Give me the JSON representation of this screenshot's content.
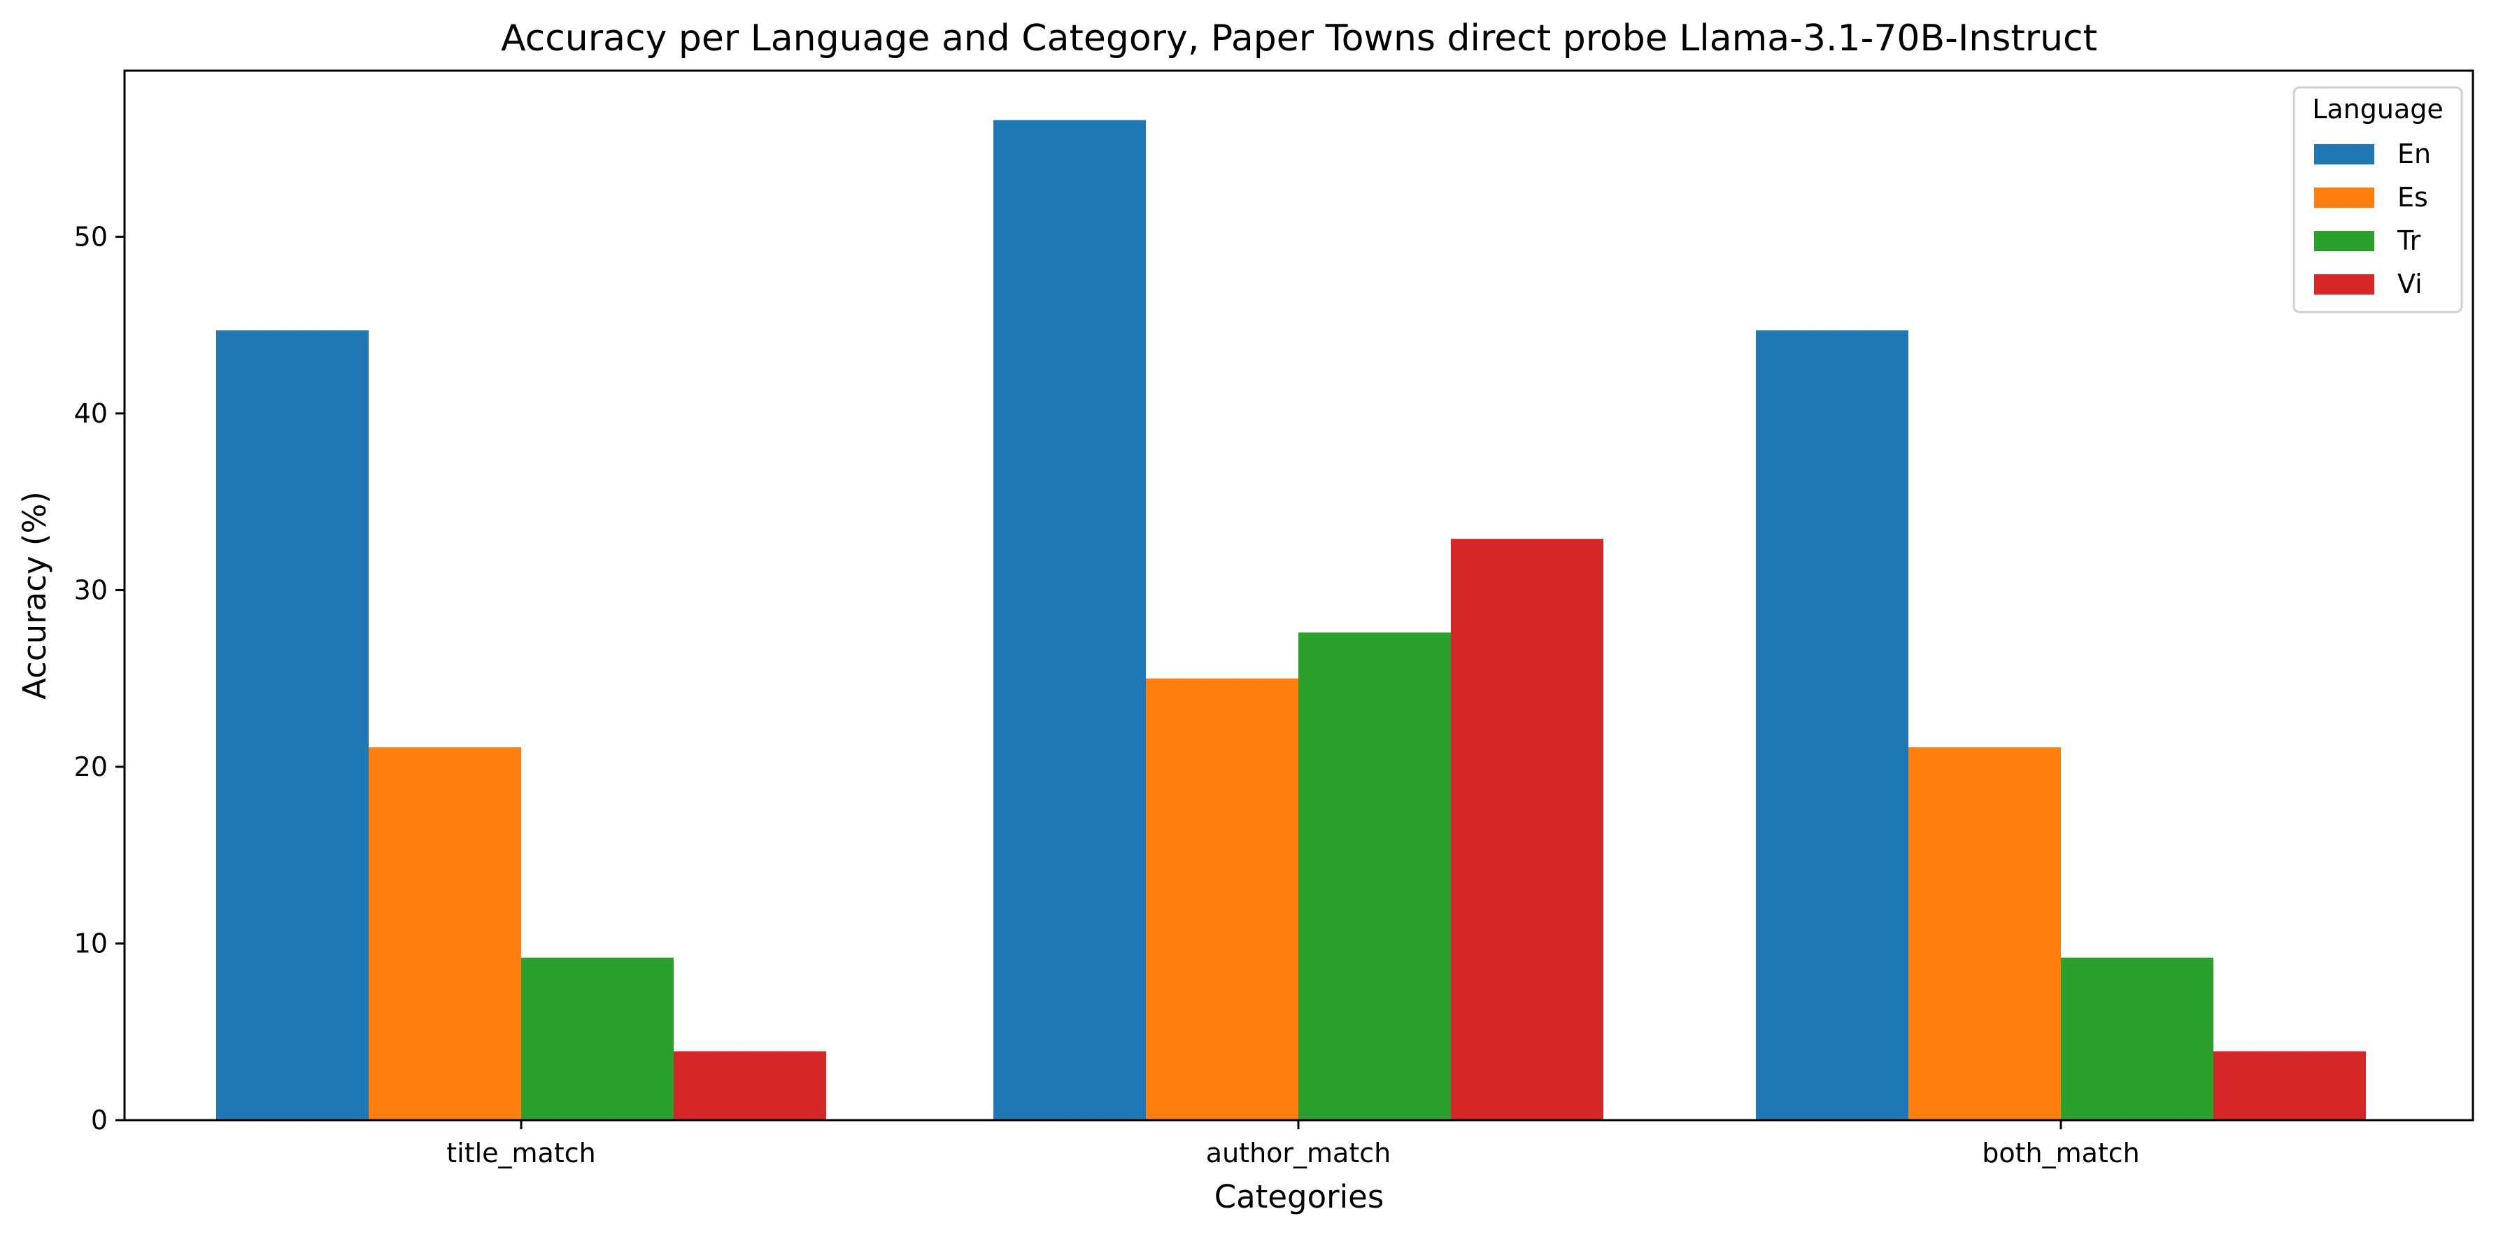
{
  "chart_data": {
    "type": "bar",
    "title": "Accuracy per Language and Category, Paper Towns direct probe Llama-3.1-70B-Instruct",
    "xlabel": "Categories",
    "ylabel": "Accuracy (%)",
    "categories": [
      "title_match",
      "author_match",
      "both_match"
    ],
    "series": [
      {
        "name": "En",
        "color": "#1f77b4",
        "values": [
          44.7,
          56.6,
          44.7
        ]
      },
      {
        "name": "Es",
        "color": "#ff7f0e",
        "values": [
          21.1,
          25.0,
          21.1
        ]
      },
      {
        "name": "Tr",
        "color": "#2ca02c",
        "values": [
          9.2,
          27.6,
          9.2
        ]
      },
      {
        "name": "Vi",
        "color": "#d62728",
        "values": [
          3.9,
          32.9,
          3.9
        ]
      }
    ],
    "ylim": [
      0,
      59.4
    ],
    "yticks": [
      0,
      10,
      20,
      30,
      40,
      50
    ],
    "grid": false,
    "legend": {
      "title": "Language",
      "placement": "top-right"
    }
  }
}
